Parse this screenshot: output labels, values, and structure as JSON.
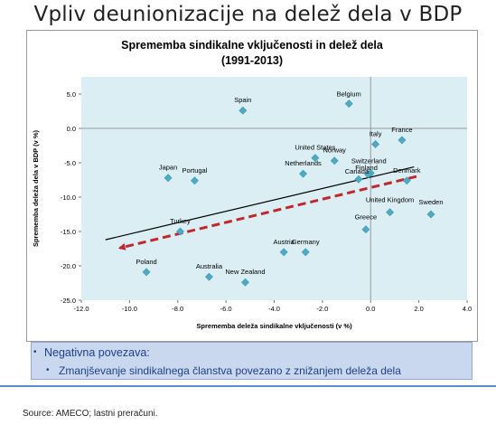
{
  "slide": {
    "title": "Vpliv deunionizacije na delež dela v BDP",
    "bullet1": "Negativna povezava:",
    "bullet2": "Zmanjševanje sindikalnega članstva povezano z znižanjem deleža dela",
    "source": "Source: AMECO; lastni preračuni."
  },
  "colors": {
    "marker": "#4bacc6",
    "plot_bg": "#dbeef4",
    "trend_line": "#000000",
    "arrow": "#c0282d",
    "bullet_bg": "#c9d8ee",
    "bullet_text": "#1f3f86",
    "rule": "#5b8bd0"
  },
  "chart_data": {
    "type": "scatter",
    "title": "Sprememba sindikalne vključenosti in delež dela",
    "subtitle": "(1991-2013)",
    "xlabel": "Sprememba deleža sindikalne vključenosti (v %)",
    "ylabel": "Sprememba deleža dela v BDP (v %)",
    "xlim": [
      -12.0,
      4.0
    ],
    "ylim": [
      -25.0,
      7.5
    ],
    "xticks": [
      -12.0,
      -10.0,
      -8.0,
      -6.0,
      -4.0,
      -2.0,
      0.0,
      2.0,
      4.0
    ],
    "yticks": [
      5.0,
      0.0,
      -5.0,
      -10.0,
      -15.0,
      -20.0,
      -25.0
    ],
    "xtick_labels": [
      "-12.0",
      "-10.0",
      "-8.0",
      "-6.0",
      "-4.0",
      "-2.0",
      "0.0",
      "2.0",
      "4.0"
    ],
    "ytick_labels": [
      "5.0",
      "0.0",
      "-5.0",
      "-10.0",
      "-15.0",
      "-20.0",
      "-25.0"
    ],
    "grid": false,
    "legend": "none",
    "points": [
      {
        "label": "Belgium",
        "x": -0.9,
        "y": 3.6
      },
      {
        "label": "Spain",
        "x": -5.3,
        "y": 2.6
      },
      {
        "label": "France",
        "x": 1.3,
        "y": -1.7
      },
      {
        "label": "Italy",
        "x": 0.2,
        "y": -2.3
      },
      {
        "label": "United States",
        "x": -2.3,
        "y": -4.3
      },
      {
        "label": "Norway",
        "x": -1.5,
        "y": -4.7
      },
      {
        "label": "Switzerland",
        "x": 0.0,
        "y": -6.5
      },
      {
        "label": "Finland",
        "x": -0.1,
        "y": -6.7
      },
      {
        "label": "Canada",
        "x": -0.5,
        "y": -7.4
      },
      {
        "label": "Netherlands",
        "x": -2.8,
        "y": -6.6
      },
      {
        "label": "Denmark",
        "x": 1.5,
        "y": -7.6
      },
      {
        "label": "Japan",
        "x": -8.4,
        "y": -7.2
      },
      {
        "label": "Portugal",
        "x": -7.3,
        "y": -7.6
      },
      {
        "label": "United Kingdom",
        "x": 0.8,
        "y": -12.2
      },
      {
        "label": "Sweden",
        "x": 2.5,
        "y": -12.5
      },
      {
        "label": "Greece",
        "x": -0.2,
        "y": -14.7
      },
      {
        "label": "Turkey",
        "x": -7.9,
        "y": -15.0
      },
      {
        "label": "Austria",
        "x": -3.6,
        "y": -18.0
      },
      {
        "label": "Germany",
        "x": -2.7,
        "y": -18.0
      },
      {
        "label": "Poland",
        "x": -9.3,
        "y": -20.9
      },
      {
        "label": "Australia",
        "x": -6.7,
        "y": -21.6
      },
      {
        "label": "New Zealand",
        "x": -5.2,
        "y": -22.4
      }
    ],
    "trend_line": {
      "x": [
        -11.0,
        1.8
      ],
      "y": [
        -16.2,
        -5.6
      ]
    },
    "arrow": {
      "from": {
        "x": 1.9,
        "y": -7.0
      },
      "to": {
        "x": -10.4,
        "y": -17.4
      }
    }
  }
}
